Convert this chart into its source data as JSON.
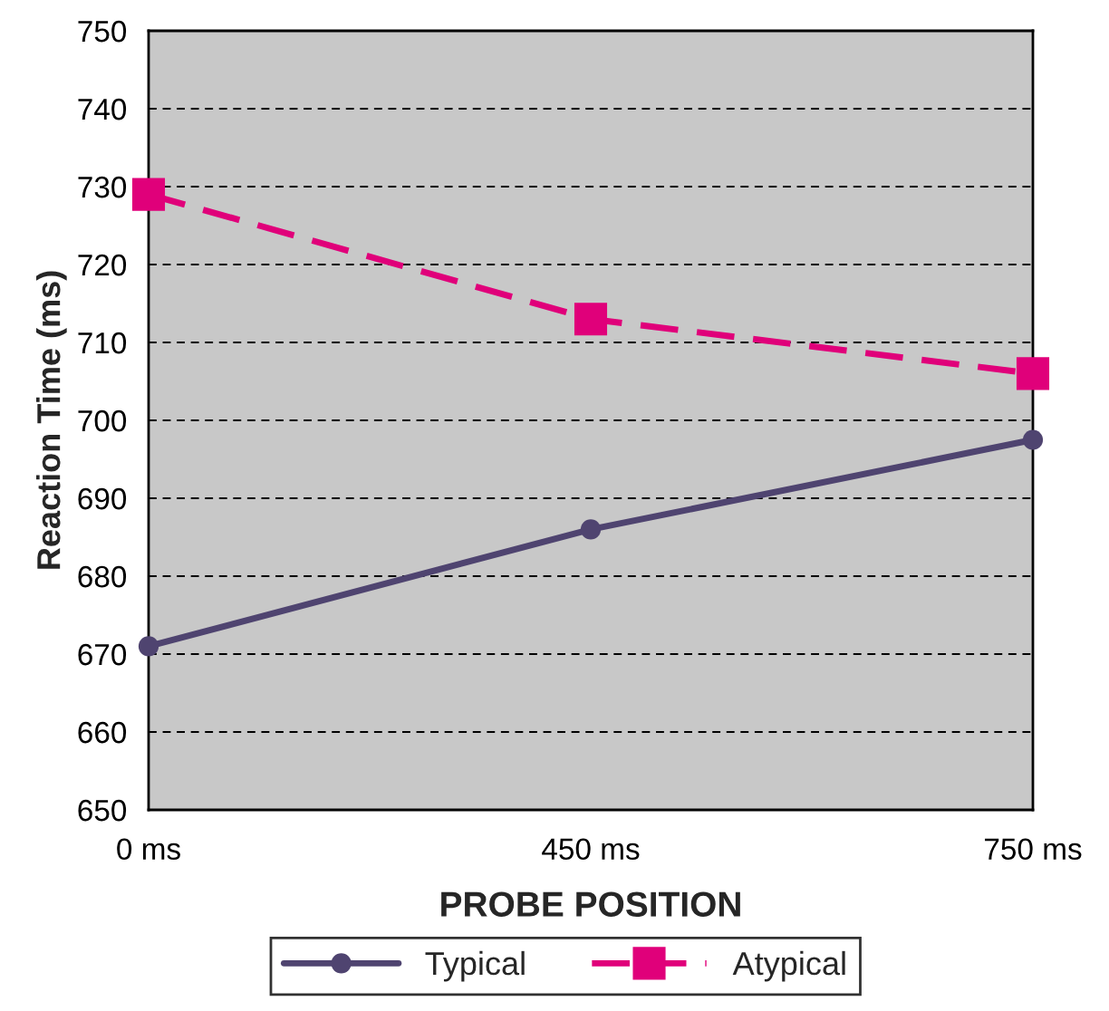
{
  "chart_data": {
    "type": "line",
    "xlabel": "PROBE POSITION",
    "ylabel": "Reaction Time (ms)",
    "categories": [
      "0 ms",
      "450 ms",
      "750 ms"
    ],
    "series": [
      {
        "name": "Typical",
        "color": "#4f4470",
        "values": [
          671,
          686,
          697.5
        ],
        "marker": "circle",
        "line_style": "solid"
      },
      {
        "name": "Atypical",
        "color": "#e0007a",
        "values": [
          729,
          713,
          706
        ],
        "marker": "square",
        "line_style": "dashed"
      }
    ],
    "ylim": [
      650,
      750
    ],
    "yticks": [
      650,
      660,
      670,
      680,
      690,
      700,
      710,
      720,
      730,
      740,
      750
    ],
    "grid": "y",
    "legend": "bottom"
  }
}
